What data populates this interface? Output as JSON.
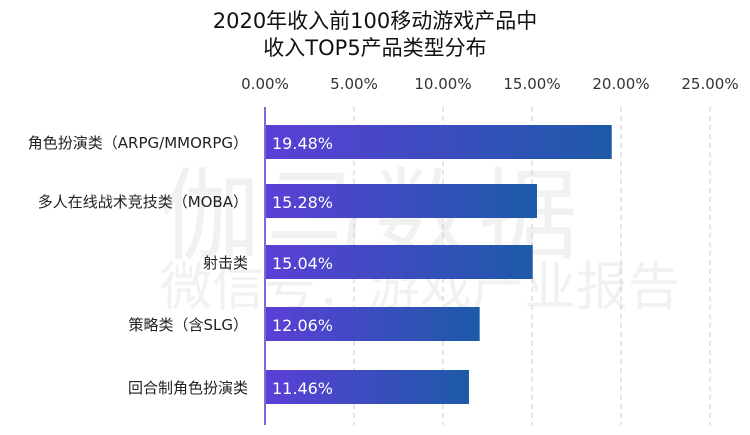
{
  "chart_data": {
    "type": "bar",
    "orientation": "horizontal",
    "title": "2020年收入前100移动游戏产品中",
    "subtitle": "收入TOP5产品类型分布",
    "categories": [
      "角色扮演类（ARPG/MMORPG）",
      "多人在线战术竞技类（MOBA）",
      "射击类",
      "策略类（含SLG）",
      "回合制角色扮演类"
    ],
    "values": [
      19.48,
      15.28,
      15.04,
      12.06,
      11.46
    ],
    "data_labels": [
      "19.48%",
      "15.28%",
      "15.04%",
      "12.06%",
      "11.46%"
    ],
    "xlim": [
      0,
      25
    ],
    "x_ticks": [
      0,
      5,
      10,
      15,
      20,
      25
    ],
    "x_tick_labels": [
      "0.00%",
      "5.00%",
      "10.00%",
      "15.00%",
      "20.00%",
      "25.00%"
    ],
    "x_axis_position": "top",
    "grid": "vertical dashed",
    "legend": "none",
    "colors": {
      "bar_start": "#5b3fd6",
      "bar_end": "#1d5aa8",
      "axis": "#4a3fd0",
      "grid": "#cccccc"
    }
  },
  "watermark": {
    "line1": "伽马数据",
    "line2": "微信号：游戏产业报告"
  }
}
